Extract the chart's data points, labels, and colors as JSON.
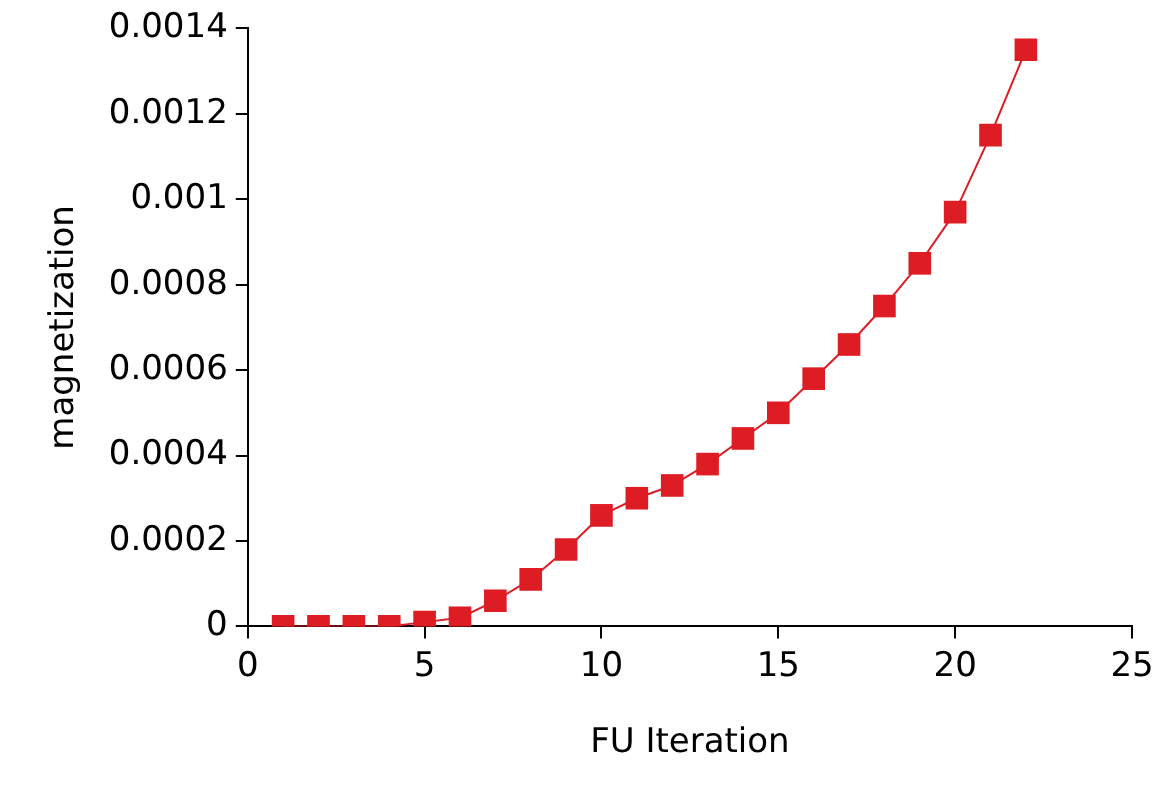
{
  "chart_data": {
    "type": "line",
    "xlabel": "FU Iteration",
    "ylabel": "magnetization",
    "x": [
      1,
      2,
      3,
      4,
      5,
      6,
      7,
      8,
      9,
      10,
      11,
      12,
      13,
      14,
      15,
      16,
      17,
      18,
      19,
      20,
      21,
      22
    ],
    "series": [
      {
        "color": "#dd1c24",
        "values": [
          0,
          0,
          0,
          0,
          1e-05,
          2e-05,
          6e-05,
          0.00011,
          0.00018,
          0.00026,
          0.0003,
          0.00033,
          0.00038,
          0.00044,
          0.0005,
          0.00058,
          0.00066,
          0.00075,
          0.00085,
          0.00097,
          0.00115,
          0.00135
        ]
      }
    ],
    "xlim": [
      0,
      25
    ],
    "xticks": [
      0,
      5,
      10,
      15,
      20,
      25
    ],
    "ylim": [
      0,
      0.0014
    ],
    "yticks": [
      0,
      0.0002,
      0.0004,
      0.0006,
      0.0008,
      0.001,
      0.0012,
      0.0014
    ],
    "marker": "square",
    "line_style": "solid",
    "grid": false,
    "legend": false
  }
}
